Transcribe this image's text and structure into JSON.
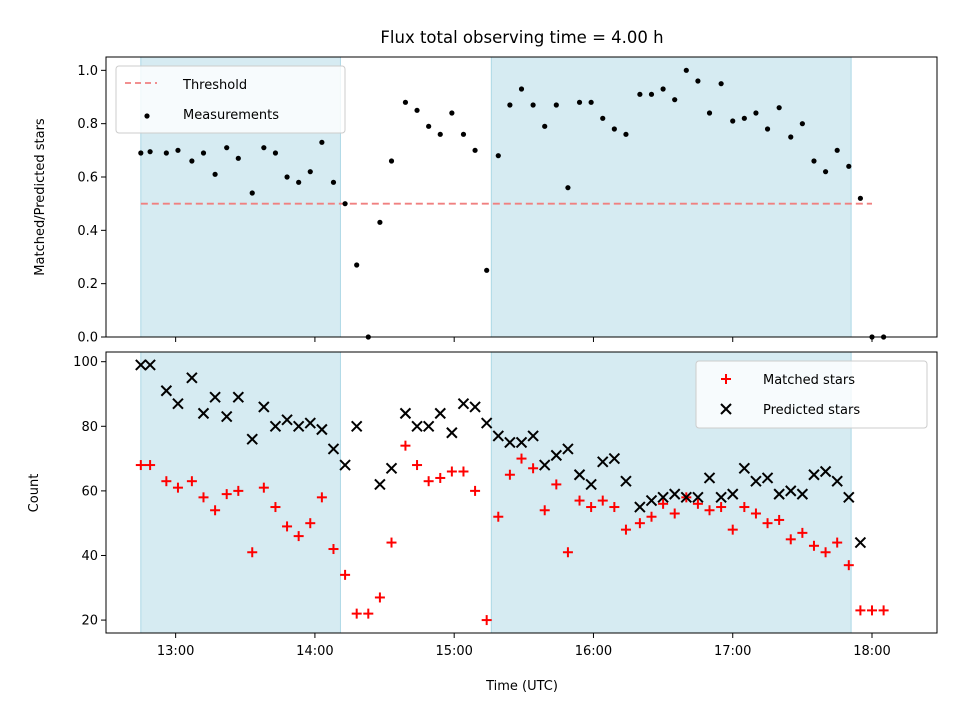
{
  "chart_data": [
    {
      "type": "scatter",
      "title": "Flux total observing time = 4.00 h",
      "xlabel": "",
      "ylabel": "Matched/Predicted stars",
      "xlim": [
        "12:30",
        "18:28"
      ],
      "ylim": [
        0,
        1.05
      ],
      "yticks": [
        "0.0",
        "0.2",
        "0.4",
        "0.6",
        "0.8",
        "1.0"
      ],
      "grid": false,
      "legend_position": "top-left",
      "shaded_intervals": [
        [
          "12:45",
          "14:11"
        ],
        [
          "15:16",
          "17:51"
        ]
      ],
      "shade_color": "#add8e6",
      "threshold": {
        "name": "Threshold",
        "value": 0.5,
        "x_range": [
          "12:45",
          "18:00"
        ],
        "color": "#f08080",
        "style": "dashed"
      },
      "series": [
        {
          "name": "Measurements",
          "color": "#000000",
          "marker": "dot",
          "points": [
            [
              "12:45",
              0.69
            ],
            [
              "12:49",
              0.695
            ],
            [
              "12:56",
              0.69
            ],
            [
              "13:01",
              0.7
            ],
            [
              "13:07",
              0.66
            ],
            [
              "13:12",
              0.69
            ],
            [
              "13:17",
              0.61
            ],
            [
              "13:22",
              0.71
            ],
            [
              "13:27",
              0.67
            ],
            [
              "13:33",
              0.54
            ],
            [
              "13:38",
              0.71
            ],
            [
              "13:43",
              0.69
            ],
            [
              "13:48",
              0.6
            ],
            [
              "13:53",
              0.58
            ],
            [
              "13:58",
              0.62
            ],
            [
              "14:03",
              0.73
            ],
            [
              "14:08",
              0.58
            ],
            [
              "14:13",
              0.5
            ],
            [
              "14:18",
              0.27
            ],
            [
              "14:23",
              0.0
            ],
            [
              "14:28",
              0.43
            ],
            [
              "14:33",
              0.66
            ],
            [
              "14:39",
              0.88
            ],
            [
              "14:44",
              0.85
            ],
            [
              "14:49",
              0.79
            ],
            [
              "14:54",
              0.76
            ],
            [
              "14:59",
              0.84
            ],
            [
              "15:04",
              0.76
            ],
            [
              "15:09",
              0.7
            ],
            [
              "15:14",
              0.25
            ],
            [
              "15:19",
              0.68
            ],
            [
              "15:24",
              0.87
            ],
            [
              "15:29",
              0.93
            ],
            [
              "15:34",
              0.87
            ],
            [
              "15:39",
              0.79
            ],
            [
              "15:44",
              0.87
            ],
            [
              "15:49",
              0.56
            ],
            [
              "15:54",
              0.88
            ],
            [
              "15:59",
              0.88
            ],
            [
              "16:04",
              0.82
            ],
            [
              "16:09",
              0.78
            ],
            [
              "16:14",
              0.76
            ],
            [
              "16:20",
              0.91
            ],
            [
              "16:25",
              0.91
            ],
            [
              "16:30",
              0.93
            ],
            [
              "16:35",
              0.89
            ],
            [
              "16:40",
              1.0
            ],
            [
              "16:45",
              0.96
            ],
            [
              "16:50",
              0.84
            ],
            [
              "16:55",
              0.95
            ],
            [
              "17:00",
              0.81
            ],
            [
              "17:05",
              0.82
            ],
            [
              "17:10",
              0.84
            ],
            [
              "17:15",
              0.78
            ],
            [
              "17:20",
              0.86
            ],
            [
              "17:25",
              0.75
            ],
            [
              "17:30",
              0.8
            ],
            [
              "17:35",
              0.66
            ],
            [
              "17:40",
              0.62
            ],
            [
              "17:45",
              0.7
            ],
            [
              "17:50",
              0.64
            ],
            [
              "17:55",
              0.52
            ],
            [
              "18:00",
              0.0
            ],
            [
              "18:05",
              0.0
            ]
          ]
        }
      ]
    },
    {
      "type": "scatter",
      "title": "",
      "xlabel": "Time (UTC)",
      "ylabel": "Count",
      "xlim": [
        "12:30",
        "18:28"
      ],
      "ylim": [
        16,
        103
      ],
      "yticks": [
        "20",
        "40",
        "60",
        "80",
        "100"
      ],
      "xticks": [
        "13:00",
        "14:00",
        "15:00",
        "16:00",
        "17:00",
        "18:00"
      ],
      "grid": false,
      "legend_position": "top-right",
      "shaded_intervals": [
        [
          "12:45",
          "14:11"
        ],
        [
          "15:16",
          "17:51"
        ]
      ],
      "shade_color": "#add8e6",
      "series": [
        {
          "name": "Matched stars",
          "color": "#ff0000",
          "marker": "plus",
          "points": [
            [
              "12:45",
              68
            ],
            [
              "12:49",
              68
            ],
            [
              "12:56",
              63
            ],
            [
              "13:01",
              61
            ],
            [
              "13:07",
              63
            ],
            [
              "13:12",
              58
            ],
            [
              "13:17",
              54
            ],
            [
              "13:22",
              59
            ],
            [
              "13:27",
              60
            ],
            [
              "13:33",
              41
            ],
            [
              "13:38",
              61
            ],
            [
              "13:43",
              55
            ],
            [
              "13:48",
              49
            ],
            [
              "13:53",
              46
            ],
            [
              "13:58",
              50
            ],
            [
              "14:03",
              58
            ],
            [
              "14:08",
              42
            ],
            [
              "14:13",
              34
            ],
            [
              "14:18",
              22
            ],
            [
              "14:23",
              22
            ],
            [
              "14:28",
              27
            ],
            [
              "14:33",
              44
            ],
            [
              "14:39",
              74
            ],
            [
              "14:44",
              68
            ],
            [
              "14:49",
              63
            ],
            [
              "14:54",
              64
            ],
            [
              "14:59",
              66
            ],
            [
              "15:04",
              66
            ],
            [
              "15:09",
              60
            ],
            [
              "15:14",
              20
            ],
            [
              "15:19",
              52
            ],
            [
              "15:24",
              65
            ],
            [
              "15:29",
              70
            ],
            [
              "15:34",
              67
            ],
            [
              "15:39",
              54
            ],
            [
              "15:44",
              62
            ],
            [
              "15:49",
              41
            ],
            [
              "15:54",
              57
            ],
            [
              "15:59",
              55
            ],
            [
              "16:04",
              57
            ],
            [
              "16:09",
              55
            ],
            [
              "16:14",
              48
            ],
            [
              "16:20",
              50
            ],
            [
              "16:25",
              52
            ],
            [
              "16:30",
              56
            ],
            [
              "16:35",
              53
            ],
            [
              "16:40",
              58
            ],
            [
              "16:45",
              56
            ],
            [
              "16:50",
              54
            ],
            [
              "16:55",
              55
            ],
            [
              "17:00",
              48
            ],
            [
              "17:05",
              55
            ],
            [
              "17:10",
              53
            ],
            [
              "17:15",
              50
            ],
            [
              "17:20",
              51
            ],
            [
              "17:25",
              45
            ],
            [
              "17:30",
              47
            ],
            [
              "17:35",
              43
            ],
            [
              "17:40",
              41
            ],
            [
              "17:45",
              44
            ],
            [
              "17:50",
              37
            ],
            [
              "17:55",
              23
            ],
            [
              "18:00",
              23
            ],
            [
              "18:05",
              23
            ]
          ]
        },
        {
          "name": "Predicted stars",
          "color": "#000000",
          "marker": "x",
          "points": [
            [
              "12:45",
              99
            ],
            [
              "12:49",
              99
            ],
            [
              "12:56",
              91
            ],
            [
              "13:01",
              87
            ],
            [
              "13:07",
              95
            ],
            [
              "13:12",
              84
            ],
            [
              "13:17",
              89
            ],
            [
              "13:22",
              83
            ],
            [
              "13:27",
              89
            ],
            [
              "13:33",
              76
            ],
            [
              "13:38",
              86
            ],
            [
              "13:43",
              80
            ],
            [
              "13:48",
              82
            ],
            [
              "13:53",
              80
            ],
            [
              "13:58",
              81
            ],
            [
              "14:03",
              79
            ],
            [
              "14:08",
              73
            ],
            [
              "14:13",
              68
            ],
            [
              "14:18",
              80
            ],
            [
              "14:28",
              62
            ],
            [
              "14:33",
              67
            ],
            [
              "14:39",
              84
            ],
            [
              "14:44",
              80
            ],
            [
              "14:49",
              80
            ],
            [
              "14:54",
              84
            ],
            [
              "14:59",
              78
            ],
            [
              "15:04",
              87
            ],
            [
              "15:09",
              86
            ],
            [
              "15:14",
              81
            ],
            [
              "15:19",
              77
            ],
            [
              "15:24",
              75
            ],
            [
              "15:29",
              75
            ],
            [
              "15:34",
              77
            ],
            [
              "15:39",
              68
            ],
            [
              "15:44",
              71
            ],
            [
              "15:49",
              73
            ],
            [
              "15:54",
              65
            ],
            [
              "15:59",
              62
            ],
            [
              "16:04",
              69
            ],
            [
              "16:09",
              70
            ],
            [
              "16:14",
              63
            ],
            [
              "16:20",
              55
            ],
            [
              "16:25",
              57
            ],
            [
              "16:30",
              58
            ],
            [
              "16:35",
              59
            ],
            [
              "16:40",
              58
            ],
            [
              "16:45",
              58
            ],
            [
              "16:50",
              64
            ],
            [
              "16:55",
              58
            ],
            [
              "17:00",
              59
            ],
            [
              "17:05",
              67
            ],
            [
              "17:10",
              63
            ],
            [
              "17:15",
              64
            ],
            [
              "17:20",
              59
            ],
            [
              "17:25",
              60
            ],
            [
              "17:30",
              59
            ],
            [
              "17:35",
              65
            ],
            [
              "17:40",
              66
            ],
            [
              "17:45",
              63
            ],
            [
              "17:50",
              58
            ],
            [
              "17:55",
              44
            ]
          ]
        }
      ]
    }
  ]
}
